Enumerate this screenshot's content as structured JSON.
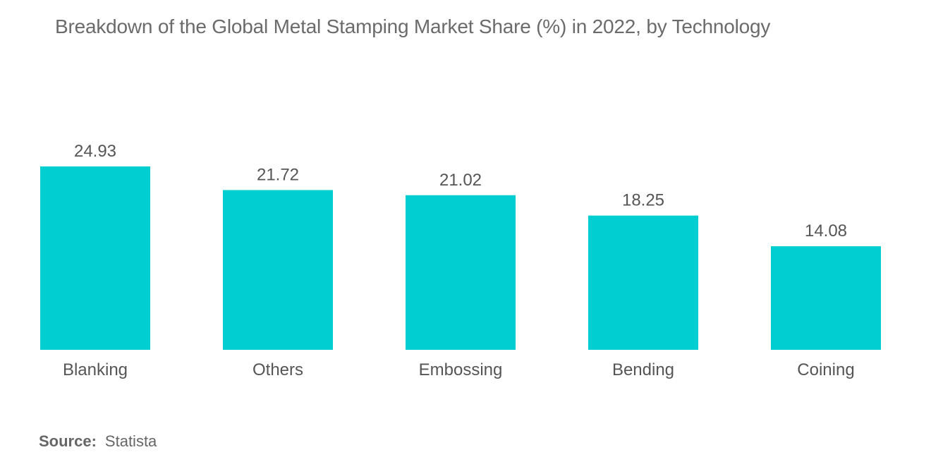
{
  "title": "Breakdown of the Global Metal Stamping Market Share (%) in 2022, by Technology",
  "source": {
    "label": "Source:",
    "value": "Statista"
  },
  "chart_data": {
    "type": "bar",
    "categories": [
      "Blanking",
      "Others",
      "Embossing",
      "Bending",
      "Coining"
    ],
    "values": [
      24.93,
      21.72,
      21.02,
      18.25,
      14.08
    ],
    "value_labels": [
      "24.93",
      "21.72",
      "21.02",
      "18.25",
      "14.08"
    ],
    "xlabel": "",
    "ylabel": "",
    "ylim": [
      0,
      24.93
    ],
    "grid": false,
    "bar_color": "#00ced1",
    "text_color": "#555555"
  }
}
